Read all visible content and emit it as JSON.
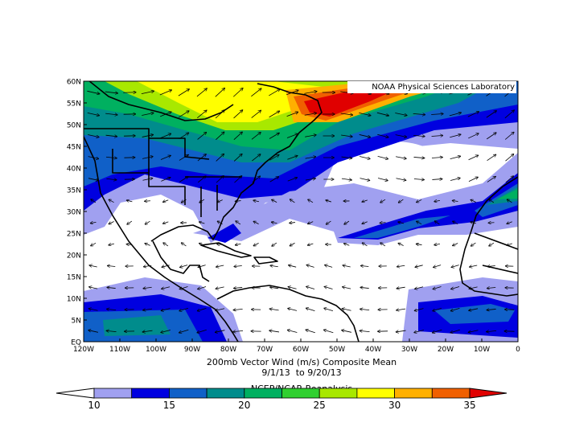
{
  "map": {
    "credit": "NOAA Physical Sciences Laboratory",
    "lat_labels": [
      "60N",
      "55N",
      "50N",
      "45N",
      "40N",
      "35N",
      "30N",
      "25N",
      "20N",
      "15N",
      "10N",
      "5N",
      "EQ"
    ],
    "lon_labels": [
      "120W",
      "110W",
      "100W",
      "90W",
      "80W",
      "70W",
      "60W",
      "50W",
      "40W",
      "30W",
      "20W",
      "10W",
      "0"
    ],
    "title": "200mb Vector Wind (m/s) Composite Mean",
    "dates": "9/1/13  to 9/20/13",
    "source": "NCEP/NCAR Reanalysis",
    "colorbar": {
      "ticks": [
        10,
        15,
        20,
        25,
        30,
        35
      ],
      "colors": [
        "#a0a0f0",
        "#0000e0",
        "#1060c8",
        "#008c8c",
        "#00b060",
        "#30d030",
        "#a8e800",
        "#ffff00",
        "#ffb000",
        "#f06000"
      ],
      "under_color": "#ffffff",
      "over_color": "#e00000"
    }
  }
}
